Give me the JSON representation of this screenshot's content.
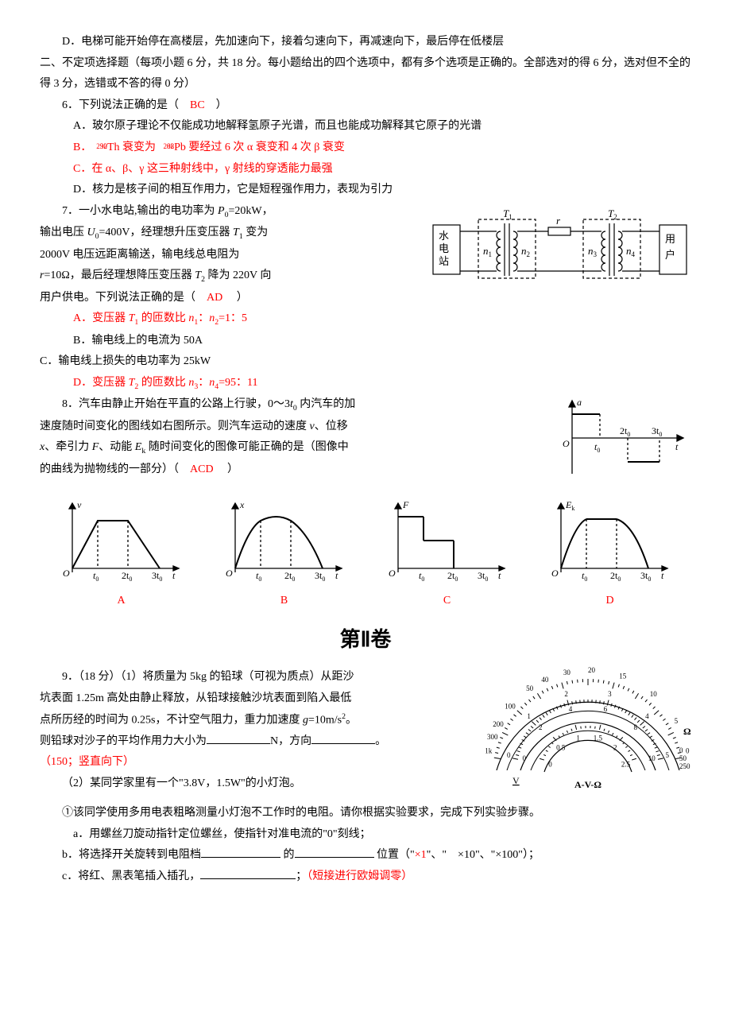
{
  "q5": {
    "optD": "D．电梯可能开始停在高楼层，先加速向下，接着匀速向下，再减速向下，最后停在低楼层"
  },
  "sec2_intro": "二、不定项选择题（每项小题 6 分，共 18 分。每小题给出的四个选项中，都有多个选项是正确的。全部选对的得 6 分，选对但不全的得 3 分，选错或不答的得 0 分）",
  "q6": {
    "stem": "6．下列说法正确的是（　",
    "ans": "BC",
    "stem_end": "　）",
    "A": "A．玻尔原子理论不仅能成功地解释氢原子光谱，而且也能成功解释其它原子的光谱",
    "B_pre": "B．",
    "B_th_a": "232",
    "B_th_z": "90",
    "B_th": "Th",
    "B_mid1": " 衰变为 ",
    "B_pb_a": "208",
    "B_pb_z": "82",
    "B_pb": "Pb",
    "B_post": " 要经过 6 次 α 衰变和 4 次 β 衰变",
    "C": "C．在 α、β、γ 这三种射线中，γ 射线的穿透能力最强",
    "D": "D．核力是核子间的相互作用力，它是短程强作用力，表现为引力"
  },
  "q7": {
    "l1a": "7．一小水电站,输出的电功率为 ",
    "P0": "P",
    "P0sub": "0",
    "l1b": "=20kW，",
    "l2a": "输出电压 ",
    "U0": "U",
    "U0sub": "0",
    "l2b": "=400V，经理想升压变压器 ",
    "T1": "T",
    "T1sub": "1",
    "l2c": " 变为",
    "l3a": "2000V 电压远距离输送，输电线总电阻为",
    "l4a": "r",
    "l4b": "=10Ω，最后经理想降压变压器 ",
    "T2": "T",
    "T2sub": "2",
    "l4c": " 降为 220V 向",
    "l5a": "用户供电。下列说法正确的是（　",
    "ans": "AD",
    "l5b": "　 ）",
    "A_pre": "A．变压器 ",
    "A_T1": "T",
    "A_T1sub": "1",
    "A_mid": " 的匝数比 ",
    "A_n1": "n",
    "A_n1sub": "1",
    "A_colon": "：",
    "A_n2": "n",
    "A_n2sub": "2",
    "A_post": "=1：5",
    "B": "B．输电线上的电流为 50A",
    "C": "C．输电线上损失的电功率为 25kW",
    "D_pre": "D．变压器 ",
    "D_T2": "T",
    "D_T2sub": "2",
    "D_mid": " 的匝数比 ",
    "D_n3": "n",
    "D_n3sub": "3",
    "D_colon": "：",
    "D_n4": "n",
    "D_n4sub": "4",
    "D_post": "=95：11",
    "fig": {
      "station": "水\n电\n站",
      "user": "用\n户",
      "T1": "T",
      "T1s": "1",
      "T2": "T",
      "T2s": "2",
      "r": "r",
      "n1": "n",
      "n1s": "1",
      "n2": "n",
      "n2s": "2",
      "n3": "n",
      "n3s": "3",
      "n4": "n",
      "n4s": "4"
    }
  },
  "q8": {
    "l1": "8．汽车由静止开始在平直的公路上行驶，0～3",
    "t0": "t",
    "t0s": "0",
    "l1b": " 内汽车的加",
    "l2a": "速度随时间变化的图线如右图所示。则汽车运动的速度 ",
    "v": "v",
    "l2b": "、位移",
    "l3a": "x",
    "l3b": "、牵引力 ",
    "F": "F",
    "l3c": "、动能 ",
    "Ek": "E",
    "Eks": "k",
    "l3d": " 随时间变化的图像可能正确的是（图像中",
    "l4a": "的曲线为抛物线的一部分）（　",
    "ans": "ACD",
    "l4b": "　 ）",
    "fig": {
      "a": "a",
      "O": "O",
      "t": "t",
      "t0": "t",
      "t0s": "0",
      "2t0": "2t",
      "3t0": "3t"
    }
  },
  "graphs": {
    "v": "v",
    "x": "x",
    "F": "F",
    "Ek": "E",
    "Eks": "k",
    "O": "O",
    "t": "t",
    "t0": "t",
    "t0s": "0",
    "2t0": "2t",
    "3t0": "3t",
    "A": "A",
    "B": "B",
    "C": "C",
    "D": "D"
  },
  "part2_title": "第Ⅱ卷",
  "q9": {
    "l1": "9．（18 分）（1）将质量为 5kg 的铅球（可视为质点）从距沙",
    "l2": "坑表面 1.25m 高处由静止释放，从铅球接触沙坑表面到陷入最低",
    "l3a": "点所历经的时间为 0.25s，不计空气阻力，重力加速度 ",
    "g": "g",
    "l3b": "=10m/s",
    "sq": "2",
    "l3c": "。",
    "l4a": "则铅球对沙子的平均作用力大小为",
    "l4b": "N，方向",
    "l4c": "。",
    "ans1": "（150；竖直向下）",
    "p2": "（2）某同学家里有一个\"3.8V，1.5W\"的小灯泡。",
    "p2_1": "①该同学使用多用电表粗略测量小灯泡不工作时的电阻。请你根据实验要求，完成下列实验步骤。",
    "sa": "a．用螺丝刀旋动指针定位螺丝，使指针对准电流的\"0\"刻线；",
    "sb_a": "b．将选择开关旋转到电阻档",
    "sb_b": " 的",
    "sb_c": " 位置（\"",
    "sb_x1": "×1",
    "sb_d": "\"、\"　×10\"、\"×100\"）；",
    "sc_a": "c．将红、黑表笔插入插孔，",
    "sc_b": "；",
    "sc_ans": "（短接进行欧姆调零）"
  },
  "meter": {
    "top_scale": [
      "1k",
      "300",
      "200",
      "100",
      "50",
      "40",
      "30",
      "20",
      "15",
      "10",
      "5",
      "0"
    ],
    "mid_scale": [
      "0",
      "1",
      "2",
      "3",
      "4",
      "5"
    ],
    "sub_mid": [
      "0",
      "2",
      "4",
      "6",
      "8",
      "10"
    ],
    "bot_scale": [
      "0",
      "0.5",
      "1",
      "1.5",
      "2",
      "2.5"
    ],
    "ohm": "Ω",
    "V": "V",
    "AVO": "A-V-Ω",
    "right_nums": [
      "0",
      "50",
      "250"
    ]
  },
  "colors": {
    "red": "#ff0000",
    "black": "#000000"
  }
}
